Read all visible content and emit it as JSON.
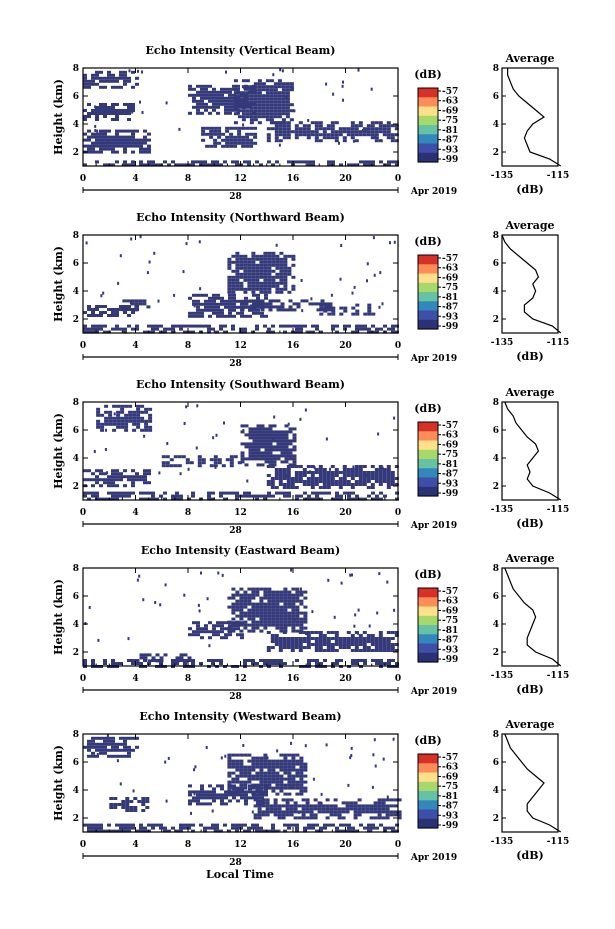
{
  "figure": {
    "xlabel": "Local Time",
    "date_label": "Apr 2019",
    "day_label": "28",
    "colorbar_unit": "(dB)",
    "colorbar_ticks": [
      "-57",
      "-63",
      "-69",
      "-75",
      "-81",
      "-87",
      "-93",
      "-99"
    ],
    "colorbar_colors": [
      "#d73027",
      "#fc8d59",
      "#fee08b",
      "#a6d96a",
      "#66c2a5",
      "#3288bd",
      "#3f4fa8",
      "#2a3275"
    ],
    "echo_color": "#34397a",
    "x_ticks": [
      "0",
      "4",
      "8",
      "12",
      "16",
      "20",
      "0"
    ],
    "y_ticks": [
      "2",
      "4",
      "6",
      "8"
    ],
    "ylabel": "Height (km)",
    "avg_title": "Average",
    "avg_xlabel": "(dB)",
    "avg_xticks": [
      "-135",
      "-115"
    ],
    "avg_yticks": [
      "2",
      "4",
      "6",
      "8"
    ]
  },
  "chart_data": [
    {
      "type": "heatmap",
      "title": "Echo Intensity (Vertical Beam)",
      "xlim": [
        0,
        24
      ],
      "ylim": [
        1,
        8
      ],
      "color_scale": [
        -99,
        -57
      ],
      "features": [
        {
          "t": [
            0,
            24
          ],
          "h": [
            1.0,
            1.4
          ]
        },
        {
          "t": [
            0,
            4
          ],
          "h": [
            6.6,
            7.8
          ]
        },
        {
          "t": [
            0,
            4
          ],
          "h": [
            4.4,
            5.5
          ]
        },
        {
          "t": [
            0,
            5
          ],
          "h": [
            2.0,
            3.6
          ]
        },
        {
          "t": [
            8,
            13
          ],
          "h": [
            4.8,
            6.8
          ]
        },
        {
          "t": [
            11.5,
            16
          ],
          "h": [
            4.0,
            7.2
          ]
        },
        {
          "t": [
            14,
            24
          ],
          "h": [
            2.8,
            4.2
          ]
        },
        {
          "t": [
            9,
            13
          ],
          "h": [
            2.5,
            3.8
          ]
        }
      ],
      "average": {
        "height": [
          1,
          1.5,
          2,
          2.5,
          3,
          3.5,
          4,
          4.5,
          5,
          5.5,
          6,
          6.5,
          7,
          7.5,
          8
        ],
        "db": [
          -114,
          -118,
          -125,
          -126,
          -127,
          -126,
          -124,
          -120,
          -123,
          -126,
          -129,
          -131,
          -132,
          -133,
          -133
        ],
        "xlim": [
          -135,
          -115
        ]
      }
    },
    {
      "type": "heatmap",
      "title": "Echo Intensity (Northward Beam)",
      "xlim": [
        0,
        24
      ],
      "ylim": [
        1,
        8
      ],
      "color_scale": [
        -99,
        -57
      ],
      "features": [
        {
          "t": [
            0,
            24
          ],
          "h": [
            1.0,
            1.6
          ]
        },
        {
          "t": [
            0,
            4
          ],
          "h": [
            2.2,
            3.0
          ]
        },
        {
          "t": [
            3,
            5
          ],
          "h": [
            2.7,
            3.4
          ]
        },
        {
          "t": [
            8,
            14
          ],
          "h": [
            2.2,
            3.8
          ]
        },
        {
          "t": [
            11,
            16
          ],
          "h": [
            3.8,
            6.8
          ]
        },
        {
          "t": [
            12,
            19
          ],
          "h": [
            2.6,
            3.4
          ]
        },
        {
          "t": [
            18,
            22
          ],
          "h": [
            2.4,
            3.1
          ]
        }
      ],
      "average": {
        "height": [
          1,
          1.5,
          2,
          2.5,
          3,
          3.5,
          4,
          4.5,
          5,
          5.5,
          6,
          6.5,
          7,
          7.5,
          8
        ],
        "db": [
          -114,
          -117,
          -124,
          -127,
          -127,
          -124,
          -123,
          -124,
          -122,
          -123,
          -126,
          -129,
          -132,
          -134,
          -135
        ],
        "xlim": [
          -135,
          -115
        ]
      }
    },
    {
      "type": "heatmap",
      "title": "Echo Intensity (Southward Beam)",
      "xlim": [
        0,
        24
      ],
      "ylim": [
        1,
        8
      ],
      "color_scale": [
        -99,
        -57
      ],
      "features": [
        {
          "t": [
            0,
            24
          ],
          "h": [
            1.0,
            1.6
          ]
        },
        {
          "t": [
            0,
            5
          ],
          "h": [
            2.0,
            3.2
          ]
        },
        {
          "t": [
            1,
            5
          ],
          "h": [
            6.0,
            7.8
          ]
        },
        {
          "t": [
            6,
            12
          ],
          "h": [
            3.5,
            4.2
          ]
        },
        {
          "t": [
            12,
            16
          ],
          "h": [
            3.6,
            6.4
          ]
        },
        {
          "t": [
            14,
            24
          ],
          "h": [
            1.8,
            3.5
          ]
        }
      ],
      "average": {
        "height": [
          1,
          1.5,
          2,
          2.5,
          3,
          3.5,
          4,
          4.5,
          5,
          5.5,
          6,
          6.5,
          7,
          7.5,
          8
        ],
        "db": [
          -114,
          -118,
          -124,
          -126,
          -125,
          -126,
          -124,
          -122,
          -123,
          -126,
          -128,
          -130,
          -131,
          -133,
          -134
        ],
        "xlim": [
          -135,
          -115
        ]
      }
    },
    {
      "type": "heatmap",
      "title": "Echo Intensity (Eastward Beam)",
      "xlim": [
        0,
        24
      ],
      "ylim": [
        1,
        8
      ],
      "color_scale": [
        -99,
        -57
      ],
      "features": [
        {
          "t": [
            0,
            24
          ],
          "h": [
            1.0,
            1.5
          ]
        },
        {
          "t": [
            8,
            12
          ],
          "h": [
            3.0,
            4.2
          ]
        },
        {
          "t": [
            11,
            17
          ],
          "h": [
            3.4,
            6.6
          ]
        },
        {
          "t": [
            14,
            24
          ],
          "h": [
            2.0,
            3.5
          ]
        },
        {
          "t": [
            4,
            8
          ],
          "h": [
            1.4,
            1.9
          ]
        }
      ],
      "average": {
        "height": [
          1,
          1.5,
          2,
          2.5,
          3,
          3.5,
          4,
          4.5,
          5,
          5.5,
          6,
          6.5,
          7,
          7.5,
          8
        ],
        "db": [
          -114,
          -117,
          -123,
          -126,
          -126,
          -125,
          -124,
          -123,
          -124,
          -127,
          -129,
          -131,
          -132,
          -133,
          -134
        ],
        "xlim": [
          -135,
          -115
        ]
      }
    },
    {
      "type": "heatmap",
      "title": "Echo Intensity (Westward Beam)",
      "xlim": [
        0,
        24
      ],
      "ylim": [
        1,
        8
      ],
      "color_scale": [
        -99,
        -57
      ],
      "features": [
        {
          "t": [
            0,
            24
          ],
          "h": [
            1.0,
            1.6
          ]
        },
        {
          "t": [
            0,
            4
          ],
          "h": [
            6.4,
            7.8
          ]
        },
        {
          "t": [
            2,
            5
          ],
          "h": [
            2.6,
            3.5
          ]
        },
        {
          "t": [
            8,
            14
          ],
          "h": [
            3.0,
            4.4
          ]
        },
        {
          "t": [
            11,
            17
          ],
          "h": [
            3.8,
            6.6
          ]
        },
        {
          "t": [
            13,
            24
          ],
          "h": [
            2.0,
            3.4
          ]
        }
      ],
      "average": {
        "height": [
          1,
          1.5,
          2,
          2.5,
          3,
          3.5,
          4,
          4.5,
          5,
          5.5,
          6,
          6.5,
          7,
          7.5,
          8
        ],
        "db": [
          -114,
          -118,
          -124,
          -126,
          -126,
          -124,
          -122,
          -120,
          -123,
          -126,
          -128,
          -130,
          -132,
          -133,
          -134
        ],
        "xlim": [
          -135,
          -115
        ]
      }
    }
  ]
}
